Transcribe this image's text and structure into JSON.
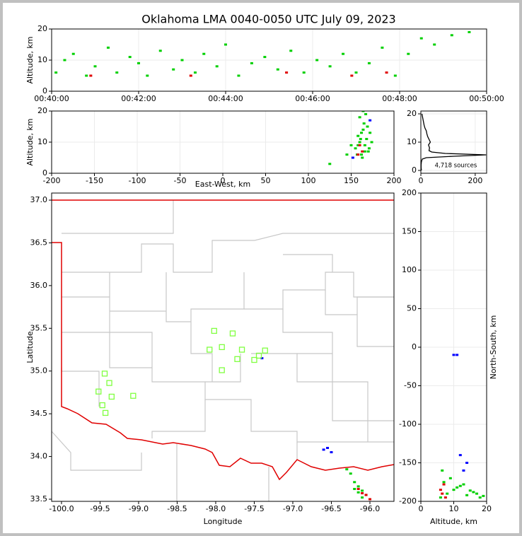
{
  "chart_data": [
    {
      "type": "scatter",
      "title": "Oklahoma LMA 0040-0050 UTC July 09, 2023",
      "ylabel": "Altitude, km",
      "grid": true,
      "xlim": [
        0,
        10
      ],
      "ylim": [
        0,
        20
      ],
      "xticks": [
        {
          "value": 0,
          "label": "00:40:00"
        },
        {
          "value": 2,
          "label": "00:42:00"
        },
        {
          "value": 4,
          "label": "00:44:00"
        },
        {
          "value": 6,
          "label": "00:46:00"
        },
        {
          "value": 8,
          "label": "00:48:00"
        },
        {
          "value": 10,
          "label": "00:50:00"
        }
      ],
      "yticks": [
        0,
        10,
        20
      ],
      "series": [
        {
          "color": "#00d000",
          "x": [
            0.1,
            0.3,
            0.5,
            0.8,
            1.0,
            1.3,
            1.5,
            1.8,
            2.0,
            2.2,
            2.5,
            2.8,
            3.0,
            3.3,
            3.5,
            3.8,
            4.0,
            4.3,
            4.6,
            4.9,
            5.2,
            5.5,
            5.8,
            6.1,
            6.4,
            6.7,
            7.0,
            7.3,
            7.6,
            7.9,
            8.2,
            8.5,
            8.8,
            9.2,
            9.6
          ],
          "y": [
            6,
            10,
            12,
            5,
            8,
            14,
            6,
            11,
            9,
            5,
            13,
            7,
            10,
            6,
            12,
            8,
            15,
            5,
            9,
            11,
            7,
            13,
            6,
            10,
            8,
            12,
            6,
            9,
            14,
            5,
            12,
            17,
            15,
            18,
            19
          ]
        },
        {
          "color": "#e00000",
          "x": [
            0.9,
            3.2,
            5.4,
            6.9,
            7.7
          ],
          "y": [
            5,
            5,
            6,
            5,
            6
          ]
        }
      ]
    },
    {
      "type": "scatter",
      "xlabel": "East-West, km",
      "ylabel": "Altitude, km",
      "grid": true,
      "xlim": [
        -200,
        200
      ],
      "ylim": [
        0,
        20
      ],
      "xticks": [
        -200,
        -150,
        -100,
        -50,
        0,
        50,
        100,
        150,
        200
      ],
      "yticks": [
        0,
        10,
        20
      ],
      "series": [
        {
          "color": "#00d000",
          "x": [
            155,
            158,
            160,
            162,
            164,
            166,
            168,
            170,
            172,
            160,
            163,
            165,
            167,
            158,
            161,
            169,
            171,
            174,
            157,
            162,
            166,
            150,
            145,
            125,
            164
          ],
          "y": [
            8,
            12,
            10,
            6,
            14,
            9,
            11,
            7,
            13,
            18,
            5,
            16,
            19,
            9,
            11,
            15,
            8,
            10,
            6,
            13,
            7,
            9,
            6,
            3,
            20
          ]
        },
        {
          "color": "#e00000",
          "x": [
            160,
            163,
            158
          ],
          "y": [
            9,
            7,
            6
          ]
        },
        {
          "color": "#0000ff",
          "x": [
            152,
            172
          ],
          "y": [
            5,
            17
          ]
        }
      ]
    },
    {
      "type": "line",
      "annotation": "4,718 sources",
      "grid": true,
      "xlim": [
        0,
        242
      ],
      "ylim": [
        -1,
        21
      ],
      "xticks": [
        0,
        200
      ],
      "yticks": [
        0,
        10,
        20
      ],
      "series": [
        {
          "color": "#000000",
          "x": [
            2,
            1,
            1,
            2,
            5,
            20,
            120,
            240,
            90,
            40,
            30,
            32,
            28,
            35,
            30,
            25,
            22,
            20,
            15,
            12,
            10,
            8,
            6,
            4
          ],
          "y": [
            0,
            1,
            2,
            3,
            4,
            4.5,
            5,
            5.5,
            6,
            6.5,
            7,
            8,
            9,
            10,
            11,
            12,
            13,
            14,
            15,
            16,
            17,
            18,
            19,
            20
          ]
        }
      ]
    },
    {
      "type": "scatter",
      "xlabel": "Longitude",
      "ylabel": "Latitude",
      "grid": false,
      "xlim": [
        -100.128,
        -95.688
      ],
      "ylim": [
        33.475,
        37.083
      ],
      "xticks": [
        {
          "value": -100,
          "label": "-100.0"
        },
        -99.5,
        {
          "value": -99,
          "label": "-99.0"
        },
        -98.5,
        {
          "value": -98,
          "label": "-98.0"
        },
        -97.5,
        {
          "value": -97,
          "label": "-97.0"
        },
        -96.5,
        {
          "value": -96,
          "label": "-96.0"
        }
      ],
      "yticks": [
        33.5,
        {
          "value": 34,
          "label": "34.0"
        },
        34.5,
        {
          "value": 35,
          "label": "35.0"
        },
        35.5,
        {
          "value": 36,
          "label": "36.0"
        },
        36.5,
        {
          "value": 37,
          "label": "37.0"
        }
      ],
      "series": [
        {
          "color": "#00d000",
          "x": [
            -96.3,
            -96.25,
            -96.2,
            -96.15,
            -96.1,
            -96.05,
            -96.0,
            -96.2,
            -96.15,
            -96.1
          ],
          "y": [
            33.85,
            33.8,
            33.7,
            33.65,
            33.6,
            33.55,
            33.5,
            33.62,
            33.58,
            33.52
          ]
        },
        {
          "color": "#e00000",
          "x": [
            -96.15,
            -96.1,
            -96.05,
            -96.0
          ],
          "y": [
            33.62,
            33.57,
            33.55,
            33.5
          ]
        },
        {
          "color": "#0000ff",
          "x": [
            -96.55,
            -96.6,
            -96.5,
            -97.4
          ],
          "y": [
            34.1,
            34.08,
            34.05,
            35.15
          ]
        },
        {
          "color": "#80ff40",
          "marker": "square",
          "x": [
            -98.02,
            -97.78,
            -97.92,
            -98.08,
            -97.66,
            -97.36,
            -97.44,
            -97.72,
            -97.5,
            -97.92,
            -99.44,
            -99.38,
            -99.52,
            -99.07,
            -99.35,
            -99.47,
            -99.43
          ],
          "y": [
            35.47,
            35.44,
            35.28,
            35.25,
            35.25,
            35.24,
            35.18,
            35.14,
            35.13,
            35.01,
            34.97,
            34.86,
            34.76,
            34.71,
            34.7,
            34.6,
            34.51
          ]
        }
      ]
    },
    {
      "type": "scatter",
      "xlabel": "Altitude, km",
      "ylabel": "North-South, km",
      "ylabel_side": "right",
      "grid": true,
      "xlim": [
        0,
        20
      ],
      "ylim": [
        -200,
        200
      ],
      "xticks": [
        0,
        10,
        20
      ],
      "yticks": [
        -200,
        -150,
        -100,
        -50,
        0,
        50,
        100,
        150,
        200
      ],
      "series": [
        {
          "color": "#00d000",
          "x": [
            6,
            8,
            10,
            12,
            14,
            16,
            18,
            7,
            9,
            11,
            13,
            15,
            17,
            19,
            6.5
          ],
          "y": [
            -195,
            -190,
            -185,
            -180,
            -192,
            -188,
            -195,
            -175,
            -170,
            -182,
            -178,
            -186,
            -190,
            -193,
            -160
          ]
        },
        {
          "color": "#e00000",
          "x": [
            6,
            6.5,
            7,
            7.5
          ],
          "y": [
            -185,
            -190,
            -178,
            -195
          ]
        },
        {
          "color": "#0000ff",
          "x": [
            12,
            14,
            13,
            10,
            11
          ],
          "y": [
            -140,
            -150,
            -160,
            -10,
            -10
          ]
        }
      ]
    }
  ]
}
